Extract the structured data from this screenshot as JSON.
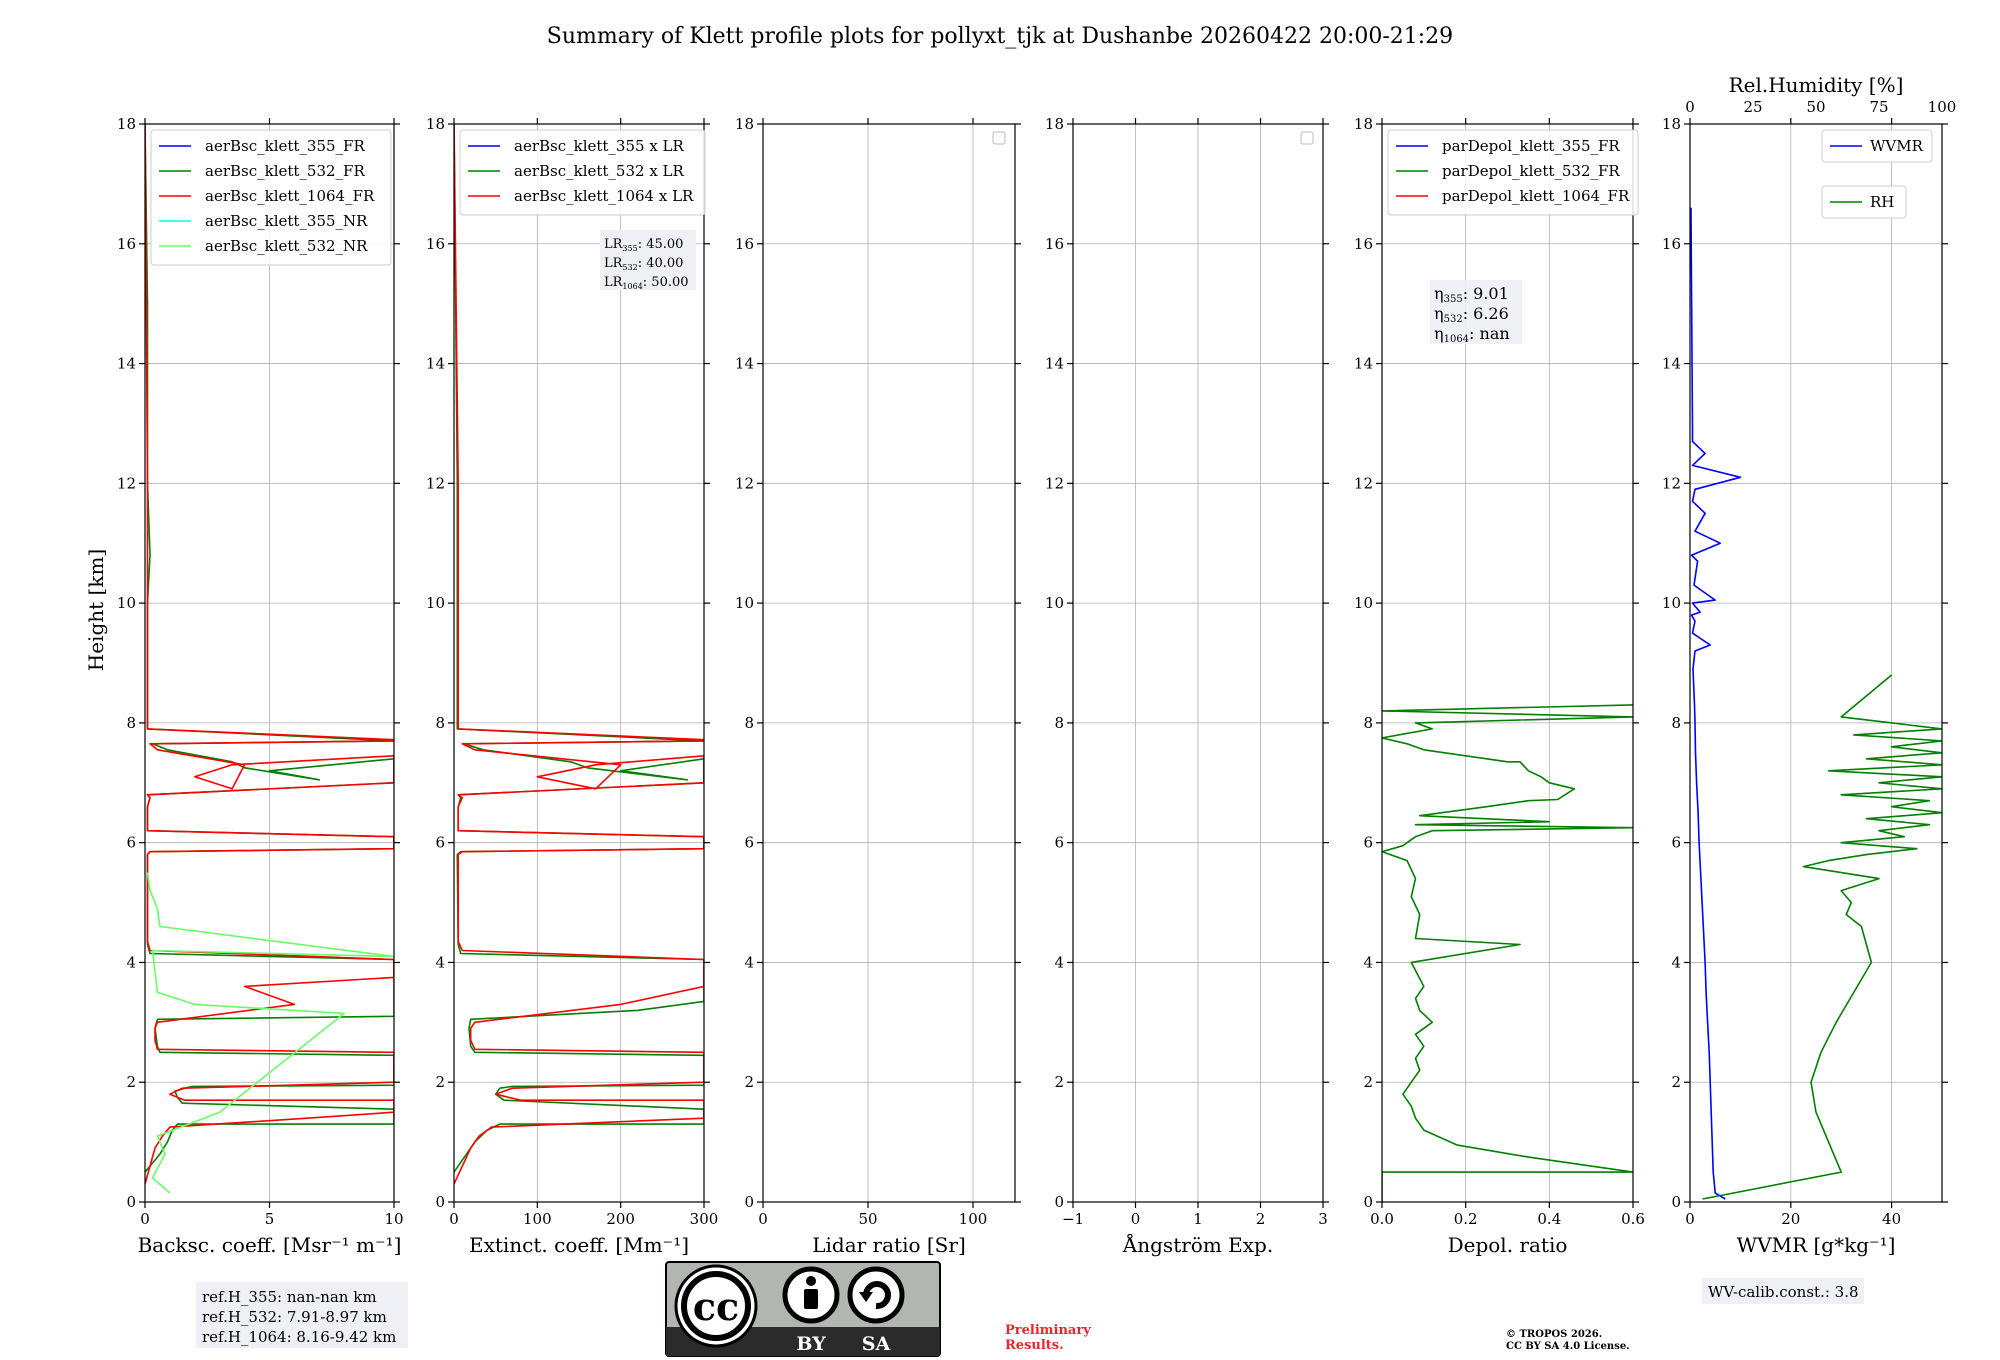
{
  "title": "Summary of Klett profile plots for pollyxt_tjk at Dushanbe 20260422 20:00-21:29",
  "y_label": "Height [km]",
  "y_ticks": [
    "0",
    "2",
    "4",
    "6",
    "8",
    "10",
    "12",
    "14",
    "16",
    "18"
  ],
  "chart_data": [
    {
      "type": "line",
      "id": "backscatter",
      "xlabel": "Backsc. coeff. [Msr⁻¹ m⁻¹]",
      "xlim": [
        0,
        10
      ],
      "ylim": [
        0,
        18
      ],
      "xticks": [
        "0",
        "5",
        "10"
      ],
      "yticks": [
        "0",
        "2",
        "4",
        "6",
        "8",
        "10",
        "12",
        "14",
        "16",
        "18"
      ],
      "legend": [
        "aerBsc_klett_355_FR",
        "aerBsc_klett_532_FR",
        "aerBsc_klett_1064_FR",
        "aerBsc_klett_355_NR",
        "aerBsc_klett_532_NR"
      ],
      "series": [
        {
          "name": "aerBsc_klett_355_FR",
          "color": "#0000ff",
          "values": []
        },
        {
          "name": "aerBsc_klett_532_FR",
          "color": "#008000",
          "x": [
            0.0,
            0.6,
            0.9,
            1.1,
            1.3,
            3.5,
            10,
            10,
            1.5,
            1.3,
            1.2,
            1.6,
            1.9,
            10,
            10,
            0.6,
            0.5,
            0.4,
            0.5,
            10,
            10,
            0.2,
            0.1,
            0.1,
            0.2,
            10,
            10,
            0.1,
            0.1,
            0.2,
            0.1,
            10,
            10,
            5.0,
            7.0,
            4.0,
            3.5,
            0.9,
            0.3,
            10,
            10,
            0.1,
            0.1,
            0.2,
            0.1,
            0.1,
            0.0
          ],
          "y": [
            0.5,
            0.8,
            1.0,
            1.2,
            1.3,
            1.3,
            1.3,
            1.55,
            1.65,
            1.75,
            1.85,
            1.9,
            1.93,
            1.95,
            2.45,
            2.5,
            2.6,
            2.9,
            3.05,
            3.1,
            4.05,
            4.15,
            4.3,
            5.8,
            5.85,
            5.9,
            6.1,
            6.2,
            6.6,
            6.75,
            6.8,
            7.0,
            7.4,
            7.2,
            7.05,
            7.25,
            7.35,
            7.55,
            7.65,
            7.7,
            7.7,
            7.9,
            10.0,
            10.8,
            12.0,
            15.0,
            18.0
          ]
        },
        {
          "name": "aerBsc_klett_1064_FR",
          "color": "#ff0000",
          "x": [
            0.0,
            0.2,
            0.4,
            0.7,
            1.0,
            6.5,
            10,
            10,
            1.6,
            1.0,
            1.5,
            10,
            10,
            0.5,
            0.4,
            0.4,
            0.5,
            6.0,
            4.0,
            10,
            10,
            0.2,
            0.1,
            0.1,
            0.2,
            10,
            10,
            0.1,
            0.1,
            0.2,
            0.1,
            10,
            10,
            3.5,
            2.0,
            3.5,
            4.0,
            0.5,
            0.2,
            10,
            10,
            0.1,
            0.1,
            0.0
          ],
          "y": [
            0.3,
            0.6,
            0.9,
            1.1,
            1.25,
            1.4,
            1.5,
            1.7,
            1.7,
            1.8,
            1.9,
            2.0,
            2.5,
            2.55,
            2.7,
            2.9,
            3.0,
            3.3,
            3.6,
            3.75,
            4.05,
            4.2,
            4.35,
            5.8,
            5.85,
            5.9,
            6.1,
            6.2,
            6.6,
            6.75,
            6.8,
            7.0,
            7.45,
            7.3,
            7.1,
            6.9,
            7.3,
            7.55,
            7.65,
            7.7,
            7.72,
            7.9,
            12.0,
            18.0
          ]
        },
        {
          "name": "aerBsc_klett_355_NR",
          "color": "#00ffff",
          "values": []
        },
        {
          "name": "aerBsc_klett_532_NR",
          "color": "#66ff66",
          "x": [
            1.0,
            0.3,
            0.8,
            0.5,
            3.0,
            8.0,
            2.0,
            0.5,
            0.3,
            10,
            0.6,
            0.5,
            0.2,
            0.1
          ],
          "y": [
            0.15,
            0.4,
            0.8,
            1.1,
            1.5,
            3.15,
            3.3,
            3.5,
            4.2,
            4.1,
            4.6,
            4.9,
            5.2,
            5.5
          ]
        }
      ],
      "annotation": [
        "ref.H_355: nan-nan km",
        "ref.H_532: 7.91-8.97 km",
        "ref.H_1064: 8.16-9.42 km"
      ]
    },
    {
      "type": "line",
      "id": "extinction",
      "xlabel": "Extinct. coeff. [Mm⁻¹]",
      "xlim": [
        0,
        300
      ],
      "ylim": [
        0,
        18
      ],
      "xticks": [
        "0",
        "100",
        "200",
        "300"
      ],
      "yticks": [
        "0",
        "2",
        "4",
        "6",
        "8",
        "10",
        "12",
        "14",
        "16",
        "18"
      ],
      "legend": [
        "aerBsc_klett_355 x LR",
        "aerBsc_klett_532 x LR",
        "aerBsc_klett_1064 x LR"
      ],
      "lidar_ratios": [
        {
          "base": "LR",
          "sub": "355",
          "value": ": 45.00"
        },
        {
          "base": "LR",
          "sub": "532",
          "value": ": 40.00"
        },
        {
          "base": "LR",
          "sub": "1064",
          "value": ": 50.00"
        }
      ],
      "series": [
        {
          "name": "aerBsc_klett_355 x LR",
          "color": "#0000ff",
          "values": []
        },
        {
          "name": "aerBsc_klett_532 x LR",
          "color": "#008000",
          "x": [
            0,
            15,
            25,
            40,
            55,
            150,
            300,
            300,
            60,
            50,
            55,
            70,
            300,
            300,
            25,
            20,
            18,
            20,
            220,
            300,
            300,
            8,
            5,
            4,
            8,
            300,
            300,
            5,
            5,
            8,
            5,
            300,
            300,
            200,
            280,
            160,
            140,
            35,
            12,
            300,
            300,
            4,
            4,
            0
          ],
          "y": [
            0.5,
            0.8,
            1.0,
            1.2,
            1.3,
            1.3,
            1.3,
            1.55,
            1.7,
            1.8,
            1.9,
            1.93,
            1.95,
            2.45,
            2.5,
            2.6,
            2.9,
            3.05,
            3.2,
            3.35,
            4.05,
            4.15,
            4.3,
            5.8,
            5.85,
            5.9,
            6.1,
            6.2,
            6.6,
            6.75,
            6.8,
            7.0,
            7.4,
            7.2,
            7.05,
            7.25,
            7.35,
            7.55,
            7.65,
            7.7,
            7.7,
            7.9,
            12.0,
            18.0
          ]
        },
        {
          "name": "aerBsc_klett_1064 x LR",
          "color": "#ff0000",
          "x": [
            0,
            10,
            20,
            30,
            45,
            300,
            300,
            80,
            50,
            70,
            300,
            300,
            25,
            20,
            20,
            25,
            200,
            300,
            300,
            10,
            5,
            5,
            10,
            300,
            300,
            5,
            5,
            10,
            5,
            300,
            300,
            170,
            100,
            170,
            200,
            25,
            10,
            300,
            300,
            5,
            5,
            0
          ],
          "y": [
            0.3,
            0.6,
            0.9,
            1.1,
            1.25,
            1.4,
            1.7,
            1.7,
            1.8,
            1.9,
            2.0,
            2.5,
            2.55,
            2.7,
            2.9,
            3.0,
            3.3,
            3.6,
            4.05,
            4.2,
            4.35,
            5.8,
            5.85,
            5.9,
            6.1,
            6.2,
            6.6,
            6.75,
            6.8,
            7.0,
            7.45,
            7.3,
            7.1,
            6.9,
            7.3,
            7.55,
            7.65,
            7.7,
            7.72,
            7.9,
            12.0,
            18.0
          ]
        }
      ]
    },
    {
      "type": "line",
      "id": "lidar-ratio",
      "xlabel": "Lidar ratio [Sr]",
      "xlim": [
        0,
        120
      ],
      "ylim": [
        0,
        18
      ],
      "xticks": [
        "0",
        "50",
        "100"
      ],
      "yticks": [
        "0",
        "2",
        "4",
        "6",
        "8",
        "10",
        "12",
        "14",
        "16",
        "18"
      ],
      "series": []
    },
    {
      "type": "line",
      "id": "angstrom",
      "xlabel": "Ångström Exp.",
      "xlim": [
        -1,
        3
      ],
      "ylim": [
        0,
        18
      ],
      "xticks": [
        "−1",
        "0",
        "1",
        "2",
        "3"
      ],
      "yticks": [
        "0",
        "2",
        "4",
        "6",
        "8",
        "10",
        "12",
        "14",
        "16",
        "18"
      ],
      "series": []
    },
    {
      "type": "line",
      "id": "depol",
      "xlabel": "Depol. ratio",
      "xlim": [
        0,
        0.6
      ],
      "ylim": [
        0,
        18
      ],
      "xticks": [
        "0.0",
        "0.2",
        "0.4",
        "0.6"
      ],
      "yticks": [
        "0",
        "2",
        "4",
        "6",
        "8",
        "10",
        "12",
        "14",
        "16",
        "18"
      ],
      "legend": [
        "parDepol_klett_355_FR",
        "parDepol_klett_532_FR",
        "parDepol_klett_1064_FR"
      ],
      "eta": [
        {
          "base": "η",
          "sub": "355",
          "value": ": 9.01"
        },
        {
          "base": "η",
          "sub": "532",
          "value": ": 6.26"
        },
        {
          "base": "η",
          "sub": "1064",
          "value": ": nan"
        }
      ],
      "series": [
        {
          "name": "parDepol_klett_355_FR",
          "color": "#0000ff",
          "values": []
        },
        {
          "name": "parDepol_klett_532_FR",
          "color": "#008000",
          "x": [
            0.0,
            0.0,
            0.6,
            0.35,
            0.18,
            0.1,
            0.08,
            0.07,
            0.05,
            0.07,
            0.09,
            0.08,
            0.1,
            0.08,
            0.12,
            0.09,
            0.08,
            0.1,
            0.07,
            0.33,
            0.08,
            0.09,
            0.07,
            0.08,
            0.06,
            0.0,
            0.05,
            0.08,
            0.12,
            0.6,
            0.08,
            0.4,
            0.09,
            0.25,
            0.35,
            0.42,
            0.46,
            0.4,
            0.38,
            0.35,
            0.33,
            0.3,
            0.2,
            0.1,
            0.06,
            0.0,
            0.12,
            0.08,
            0.6,
            0.0,
            0.6
          ],
          "y": [
            0.0,
            0.5,
            0.5,
            0.75,
            0.95,
            1.2,
            1.4,
            1.6,
            1.8,
            2.0,
            2.2,
            2.4,
            2.6,
            2.8,
            3.0,
            3.2,
            3.4,
            3.6,
            4.0,
            4.3,
            4.4,
            4.8,
            5.1,
            5.4,
            5.7,
            5.85,
            5.95,
            6.1,
            6.2,
            6.25,
            6.3,
            6.35,
            6.45,
            6.6,
            6.7,
            6.72,
            6.9,
            7.0,
            7.1,
            7.2,
            7.35,
            7.35,
            7.45,
            7.55,
            7.65,
            7.75,
            7.9,
            8.0,
            8.1,
            8.2,
            8.3
          ]
        },
        {
          "name": "parDepol_klett_1064_FR",
          "color": "#ff0000",
          "values": []
        }
      ]
    },
    {
      "type": "line",
      "id": "water-vapor",
      "xlabel": "WVMR [g*kg⁻¹]",
      "x2label": "Rel.Humidity [%]",
      "xlim": [
        0,
        50
      ],
      "x2lim": [
        0,
        100
      ],
      "ylim": [
        0,
        18
      ],
      "xticks": [
        "0",
        "20",
        "40"
      ],
      "x2ticks": [
        "0",
        "25",
        "50",
        "75",
        "100"
      ],
      "yticks": [
        "0",
        "2",
        "4",
        "6",
        "8",
        "10",
        "12",
        "14",
        "16",
        "18"
      ],
      "legend": [
        "WVMR",
        "RH"
      ],
      "series": [
        {
          "name": "WVMR",
          "color": "#0000ff",
          "x": [
            7,
            5,
            4.6,
            4.4,
            4.2,
            4.0,
            3.8,
            3.5,
            3.2,
            3.0,
            2.7,
            2.4,
            2.1,
            1.8,
            1.6,
            1.3,
            1.1,
            1.0,
            0.9,
            0.8,
            0.7,
            0.6,
            1.0,
            4.0,
            0.5,
            1.0,
            0.3,
            2.0,
            0.5,
            5.0,
            0.8,
            1.5,
            0.3,
            6.0,
            1.0,
            3.0,
            0.5,
            1.0,
            10.0,
            0.5,
            3.0,
            0.5,
            0.5,
            0.2,
            0.2
          ],
          "y": [
            0.05,
            0.15,
            0.5,
            1.0,
            1.5,
            2.0,
            2.5,
            3.0,
            3.5,
            4.0,
            4.5,
            5.0,
            5.5,
            6.0,
            6.5,
            7.0,
            7.5,
            8.0,
            8.3,
            8.5,
            8.7,
            8.9,
            9.2,
            9.3,
            9.5,
            9.7,
            9.8,
            9.85,
            10.0,
            10.05,
            10.3,
            10.7,
            10.8,
            11.0,
            11.2,
            11.5,
            11.7,
            11.9,
            12.1,
            12.3,
            12.5,
            12.7,
            12.9,
            16.5,
            16.6
          ]
        },
        {
          "name": "RH",
          "color": "#008000",
          "x2": [
            5,
            60,
            55,
            50,
            48,
            52,
            58,
            65,
            72,
            70,
            68,
            62,
            64,
            60,
            75,
            60,
            45,
            55,
            70,
            90,
            60,
            85,
            75,
            95,
            70,
            100,
            80,
            95,
            60,
            100,
            75,
            100,
            55,
            100,
            70,
            100,
            80,
            100,
            65,
            100,
            60,
            80
          ],
          "y": [
            0.05,
            0.5,
            1.0,
            1.5,
            2.0,
            2.5,
            3.0,
            3.5,
            4.0,
            4.3,
            4.6,
            4.8,
            5.0,
            5.2,
            5.4,
            5.5,
            5.6,
            5.7,
            5.8,
            5.9,
            6.0,
            6.1,
            6.2,
            6.3,
            6.4,
            6.5,
            6.6,
            6.7,
            6.8,
            6.9,
            7.0,
            7.1,
            7.2,
            7.3,
            7.4,
            7.5,
            7.6,
            7.7,
            7.8,
            7.9,
            8.1,
            8.8
          ]
        }
      ],
      "annotation": "WV-calib.const.: 3.8"
    }
  ],
  "footer": {
    "license_by": "BY",
    "license_sa": "SA",
    "license_cc": "cc",
    "preliminary_line1": "Preliminary",
    "preliminary_line2": "Results.",
    "copyright_line1": "© TROPOS 2026.",
    "copyright_line2": "CC BY SA 4.0 License."
  },
  "colors": {
    "blue": "#0000ff",
    "green": "#008000",
    "red": "#ff0000",
    "cyan": "#00ffff",
    "lightgreen": "#66ff66",
    "preliminary": "#e8242c",
    "annotation_bg": "#eef0f6"
  }
}
